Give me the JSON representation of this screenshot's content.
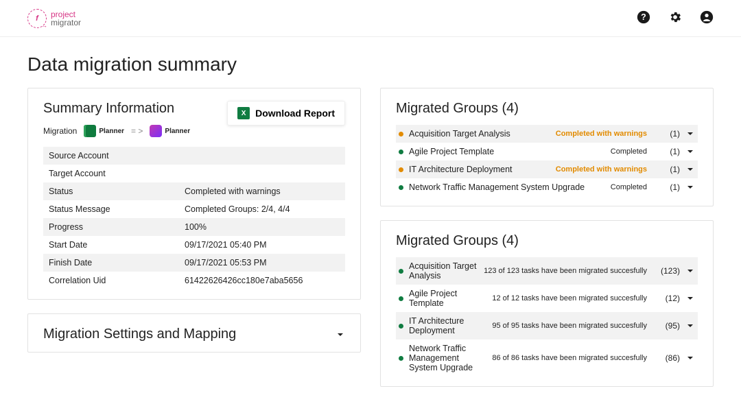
{
  "header": {
    "logo": {
      "line1": "project",
      "line2": "migrator",
      "brand_color": "#d63384"
    }
  },
  "page_title": "Data migration summary",
  "summary_card": {
    "title": "Summary Information",
    "download_label": "Download Report",
    "migration_label": "Migration",
    "from_app": "Planner",
    "arrow": "= >",
    "to_app": "Planner",
    "rows": [
      {
        "k": "Source Account",
        "v": ""
      },
      {
        "k": "Target Account",
        "v": ""
      },
      {
        "k": "Status",
        "v": "Completed with warnings"
      },
      {
        "k": "Status Message",
        "v": "Completed Groups: 2/4, 4/4"
      },
      {
        "k": "Progress",
        "v": "100%"
      },
      {
        "k": "Start Date",
        "v": "09/17/2021 05:40 PM"
      },
      {
        "k": "Finish Date",
        "v": "09/17/2021 05:53 PM"
      },
      {
        "k": "Correlation Uid",
        "v": "61422626426cc180e7aba5656"
      }
    ]
  },
  "settings_card": {
    "title": "Migration Settings and Mapping"
  },
  "groups_card_a": {
    "title": "Migrated Groups (4)",
    "items": [
      {
        "name": "Acquisition Target Analysis",
        "status": "Completed with warnings",
        "warn": true,
        "count": "(1)",
        "dot": "#e28b00"
      },
      {
        "name": "Agile Project Template",
        "status": "Completed",
        "warn": false,
        "count": "(1)",
        "dot": "#107c41"
      },
      {
        "name": "IT Architecture Deployment",
        "status": "Completed with warnings",
        "warn": true,
        "count": "(1)",
        "dot": "#e28b00"
      },
      {
        "name": "Network Traffic Management System Upgrade",
        "status": "Completed",
        "warn": false,
        "count": "(1)",
        "dot": "#107c41"
      }
    ]
  },
  "groups_card_b": {
    "title": "Migrated Groups (4)",
    "items": [
      {
        "name": "Acquisition Target Analysis",
        "status": "123 of 123 tasks have been migrated succesfully",
        "warn": false,
        "count": "(123)",
        "dot": "#107c41"
      },
      {
        "name": "Agile Project Template",
        "status": "12 of 12 tasks have been migrated succesfully",
        "warn": false,
        "count": "(12)",
        "dot": "#107c41"
      },
      {
        "name": "IT Architecture Deployment",
        "status": "95 of 95 tasks have been migrated succesfully",
        "warn": false,
        "count": "(95)",
        "dot": "#107c41"
      },
      {
        "name": "Network Traffic Management System Upgrade",
        "status": "86 of 86 tasks have been migrated succesfully",
        "warn": false,
        "count": "(86)",
        "dot": "#107c41"
      }
    ]
  },
  "colors": {
    "warning_text": "#e28b00",
    "success_dot": "#107c41",
    "warning_dot": "#e28b00",
    "row_alt": "#f2f2f2",
    "border": "#e2e2e2"
  }
}
